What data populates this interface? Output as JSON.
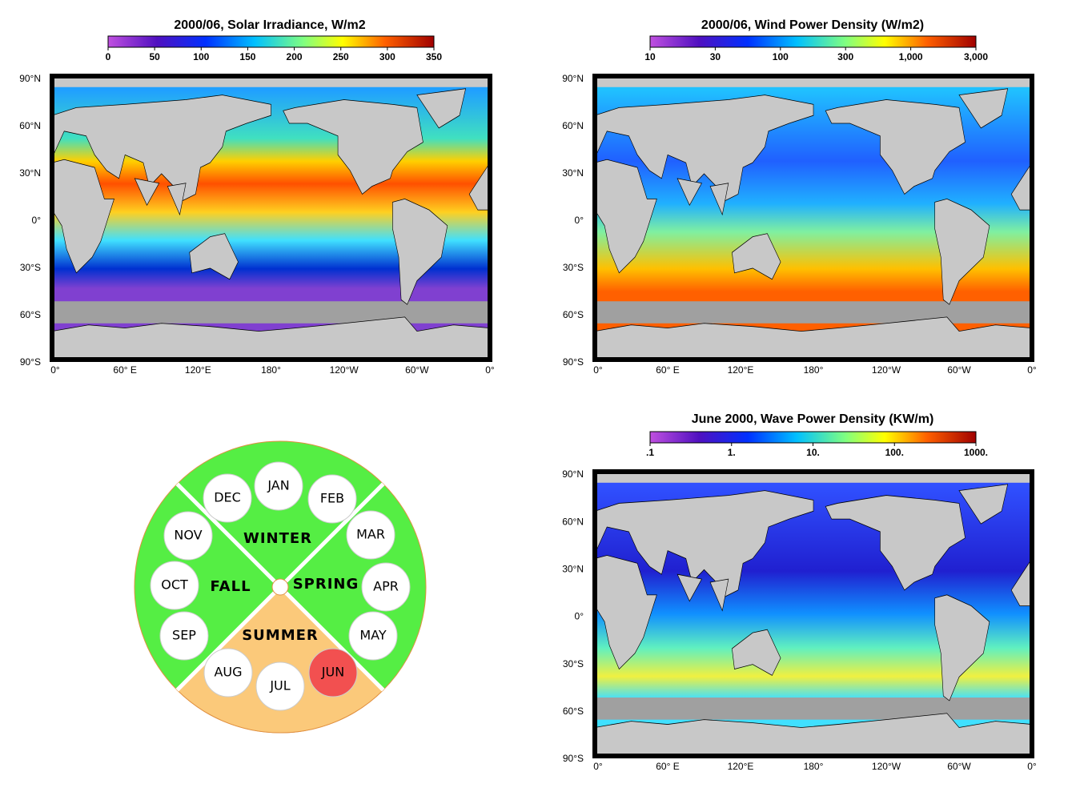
{
  "panels": [
    {
      "title": "2000/06, Solar Irradiance, W/m2",
      "colorbar_labels": [
        "0",
        "50",
        "100",
        "150",
        "200",
        "250",
        "300",
        "350"
      ],
      "lat_labels": [
        "90°N",
        "60°N",
        "30°N",
        "0°",
        "30°S",
        "60°S",
        "90°S"
      ],
      "lon_labels": [
        "0°",
        "60° E",
        "120°E",
        "180°",
        "120°W",
        "60°W",
        "0°"
      ]
    },
    {
      "title": "2000/06, Wind Power Density (W/m2)",
      "colorbar_labels": [
        "10",
        "30",
        "100",
        "300",
        "1,000",
        "3,000"
      ],
      "lat_labels": [
        "90°N",
        "60°N",
        "30°N",
        "0°",
        "30°S",
        "60°S",
        "90°S"
      ],
      "lon_labels": [
        "0°",
        "60° E",
        "120°E",
        "180°",
        "120°W",
        "60°W",
        "0°"
      ]
    },
    {
      "title": "June 2000, Wave Power Density (KW/m)",
      "colorbar_labels": [
        ".1",
        "1.",
        "10.",
        "100.",
        "1000."
      ],
      "lat_labels": [
        "90°N",
        "60°N",
        "30°N",
        "0°",
        "30°S",
        "60°S",
        "90°S"
      ],
      "lon_labels": [
        "0°",
        "60° E",
        "120°E",
        "180°",
        "120°W",
        "60°W",
        "0°"
      ]
    }
  ],
  "wheel": {
    "seasons": [
      "WINTER",
      "SPRING",
      "SUMMER",
      "FALL"
    ],
    "months": [
      "DEC",
      "JAN",
      "FEB",
      "MAR",
      "APR",
      "MAY",
      "JUN",
      "JUL",
      "AUG",
      "SEP",
      "OCT",
      "NOV"
    ]
  }
}
